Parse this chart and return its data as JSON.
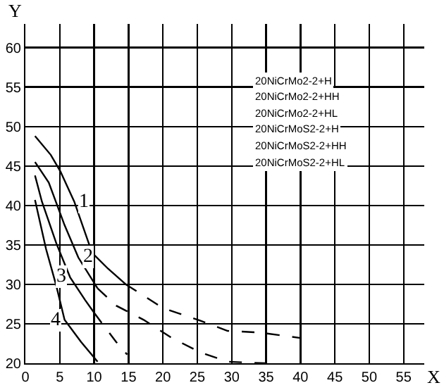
{
  "chart_data": {
    "type": "line",
    "xlabel": "X",
    "ylabel": "Y",
    "xlim": [
      0,
      58
    ],
    "ylim": [
      20,
      63
    ],
    "xticks": [
      0,
      5,
      10,
      15,
      20,
      25,
      30,
      35,
      40,
      45,
      50,
      55
    ],
    "yticks": [
      20,
      25,
      30,
      35,
      40,
      45,
      50,
      55,
      60
    ],
    "grid": true,
    "legend": false,
    "marker": "none",
    "series": [
      {
        "name": "1",
        "color": "#000000",
        "line_style": "solid",
        "x": [
          1.4,
          3.7,
          5.1,
          7.1,
          9.7,
          12,
          14.6
        ],
        "values": [
          48.8,
          46.4,
          44.3,
          40.5,
          34,
          32,
          30
        ]
      },
      {
        "color": "#000000",
        "line_style": "dashed",
        "x": [
          14.6,
          20,
          25.4,
          29.4,
          34,
          40
        ],
        "values": [
          30,
          27,
          25.4,
          24.1,
          23.9,
          23.2
        ]
      },
      {
        "name": "2",
        "color": "#000000",
        "line_style": "solid",
        "x": [
          1.4,
          3.4,
          5.7,
          7.7,
          10.5
        ],
        "values": [
          45.5,
          42.9,
          37.5,
          33.4,
          29.5
        ]
      },
      {
        "color": "#000000",
        "line_style": "dashed",
        "x": [
          10.5,
          13.2,
          17.2,
          21.3,
          25.4,
          29.4,
          35
        ],
        "values": [
          29.5,
          27.3,
          25.5,
          23.2,
          21.4,
          20.2,
          20
        ]
      },
      {
        "name": "3",
        "color": "#000000",
        "line_style": "solid",
        "x": [
          1.4,
          2.4,
          4.5,
          6.5,
          8.7,
          10
        ],
        "values": [
          43.8,
          40.5,
          35.2,
          30.9,
          28,
          26.4
        ]
      },
      {
        "color": "#000000",
        "line_style": "dashed",
        "x": [
          10,
          11.2,
          13.2,
          14.8
        ],
        "values": [
          26.4,
          25,
          22.7,
          21.1
        ]
      },
      {
        "name": "4",
        "color": "#000000",
        "line_style": "solid",
        "x": [
          1.4,
          3,
          4.5,
          5.7,
          8.1,
          10.5
        ],
        "values": [
          40.7,
          34.5,
          29.8,
          25.5,
          22.7,
          20.2
        ]
      }
    ],
    "annotations": [
      "20NiCrMo2-2+H",
      "20NiCrMo2-2+HH",
      "20NiCrMo2-2+HL",
      "20NiCrMoS2-2+H",
      "20NiCrMoS2-2+HH",
      "20NiCrMoS2-2+HL"
    ]
  }
}
